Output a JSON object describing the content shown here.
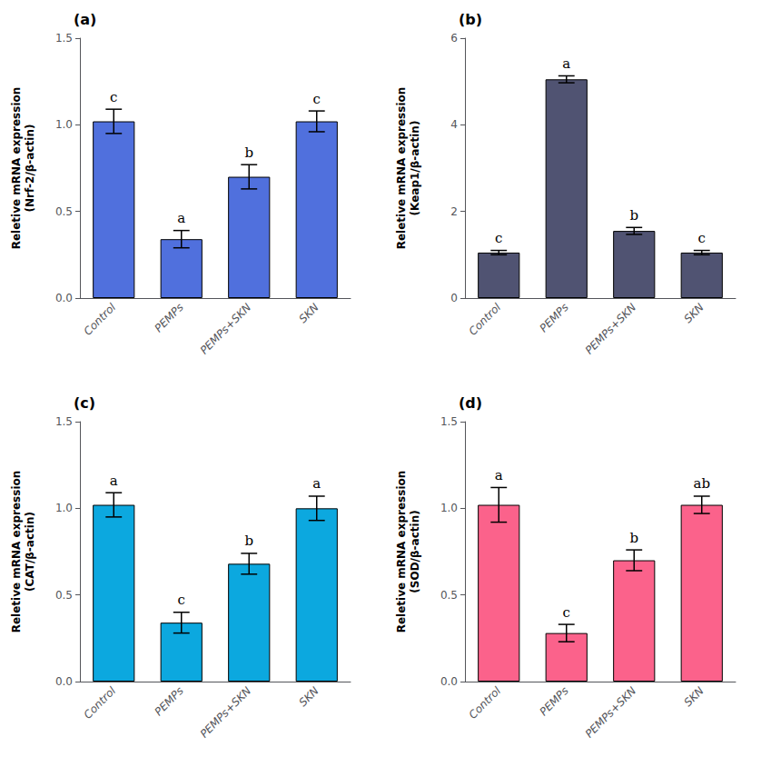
{
  "chart_data": [
    {
      "type": "bar",
      "title": "(a)",
      "ylabel": "Reletive mRNA expression\n(Nrf-2/β-actin)",
      "categories": [
        "Control",
        "PEMPs",
        "PEMPs+SKN",
        "SKN"
      ],
      "values": [
        1.02,
        0.34,
        0.7,
        1.02
      ],
      "errors": [
        0.07,
        0.05,
        0.07,
        0.06
      ],
      "annotations": [
        "c",
        "a",
        "b",
        "c"
      ],
      "ylim": [
        0,
        1.5
      ],
      "yticks": [
        {
          "value": 0,
          "label": "0.0"
        },
        0.5,
        {
          "value": 1,
          "label": "1.0"
        },
        1.5
      ],
      "grid": false
    },
    {
      "type": "bar",
      "title": "(b)",
      "ylabel": "Reletive mRNA expression\n(Keap1/β-actin)",
      "categories": [
        "Control",
        "PEMPs",
        "PEMPs+SKN",
        "SKN"
      ],
      "values": [
        1.05,
        5.05,
        1.55,
        1.05
      ],
      "errors": [
        0.05,
        0.08,
        0.08,
        0.05
      ],
      "annotations": [
        "c",
        "a",
        "b",
        "c"
      ],
      "ylim": [
        0,
        6
      ],
      "yticks": [
        0,
        2,
        4,
        6
      ],
      "grid": false
    },
    {
      "type": "bar",
      "title": "(c)",
      "ylabel": "Reletive mRNA expression\n(CAT/β-actin)",
      "categories": [
        "Control",
        "PEMPs",
        "PEMPs+SKN",
        "SKN"
      ],
      "values": [
        1.02,
        0.34,
        0.68,
        1.0
      ],
      "errors": [
        0.07,
        0.06,
        0.06,
        0.07
      ],
      "annotations": [
        "a",
        "c",
        "b",
        "a"
      ],
      "ylim": [
        0,
        1.5
      ],
      "yticks": [
        {
          "value": 0,
          "label": "0.0"
        },
        0.5,
        {
          "value": 1,
          "label": "1.0"
        },
        1.5
      ],
      "grid": false
    },
    {
      "type": "bar",
      "title": "(d)",
      "ylabel": "Reletive mRNA expression\n(SOD/β-actin)",
      "categories": [
        "Control",
        "PEMPs",
        "PEMPs+SKN",
        "SKN"
      ],
      "values": [
        1.02,
        0.28,
        0.7,
        1.02
      ],
      "errors": [
        0.1,
        0.05,
        0.06,
        0.05
      ],
      "annotations": [
        "a",
        "c",
        "b",
        "ab"
      ],
      "ylim": [
        0,
        1.5
      ],
      "yticks": [
        {
          "value": 0,
          "label": "0.0"
        },
        0.5,
        {
          "value": 1,
          "label": "1.0"
        },
        1.5
      ],
      "grid": false
    }
  ]
}
